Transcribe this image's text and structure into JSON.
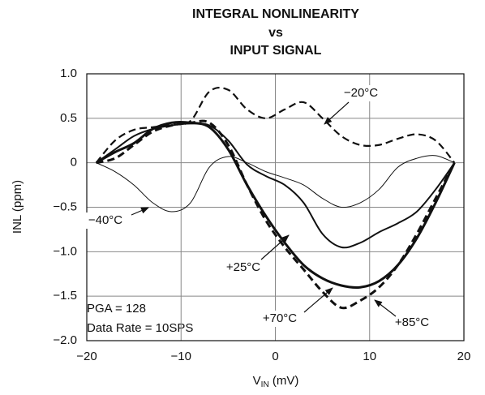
{
  "chart_data": {
    "type": "line",
    "title": [
      "INTEGRAL NONLINEARITY",
      "vs",
      "INPUT SIGNAL"
    ],
    "x_label": {
      "base": "V",
      "subscript": "IN",
      "unit": " (mV)"
    },
    "y_label": "INL (ppm)",
    "xlim": [
      -20,
      20
    ],
    "ylim": [
      -2.0,
      1.0
    ],
    "xticks": [
      {
        "value": -20,
        "label": "−20"
      },
      {
        "value": -10,
        "label": "−10"
      },
      0,
      10,
      20
    ],
    "yticks": [
      {
        "value": 1.0,
        "label": "1.0"
      },
      {
        "value": 0.5,
        "label": "0.5"
      },
      0,
      {
        "value": -0.5,
        "label": "−0.5"
      },
      {
        "value": -1.0,
        "label": "−1.0"
      },
      {
        "value": -1.5,
        "label": "−1.5"
      },
      {
        "value": -2.0,
        "label": "−2.0"
      }
    ],
    "grid": true,
    "x": [
      -19,
      -17,
      -15,
      -13,
      -11,
      -9,
      -7,
      -5,
      -3,
      -1,
      1,
      3,
      5,
      7,
      9,
      11,
      13,
      15,
      17,
      19
    ],
    "series": [
      {
        "name": "−20°C",
        "color": "#111111",
        "dash": true,
        "width": 2.2,
        "values": [
          0,
          0.25,
          0.37,
          0.4,
          0.43,
          0.47,
          0.8,
          0.82,
          0.6,
          0.5,
          0.6,
          0.68,
          0.5,
          0.3,
          0.2,
          0.2,
          0.27,
          0.32,
          0.25,
          0
        ]
      },
      {
        "name": "−40°C",
        "color": "#111111",
        "dash": false,
        "width": 1,
        "values": [
          0,
          -0.1,
          -0.25,
          -0.45,
          -0.55,
          -0.45,
          -0.05,
          0.07,
          0.0,
          -0.1,
          -0.17,
          -0.25,
          -0.4,
          -0.5,
          -0.45,
          -0.3,
          -0.05,
          0.05,
          0.08,
          0
        ]
      },
      {
        "name": "+25°C",
        "color": "#111111",
        "dash": false,
        "width": 2,
        "values": [
          0,
          0.15,
          0.3,
          0.38,
          0.42,
          0.44,
          0.42,
          0.25,
          -0.02,
          -0.15,
          -0.25,
          -0.45,
          -0.8,
          -0.95,
          -0.9,
          -0.78,
          -0.68,
          -0.55,
          -0.3,
          0
        ]
      },
      {
        "name": "+70°C",
        "color": "#111111",
        "dash": false,
        "width": 3,
        "values": [
          0,
          0.12,
          0.22,
          0.38,
          0.45,
          0.45,
          0.4,
          0.15,
          -0.25,
          -0.6,
          -0.9,
          -1.15,
          -1.3,
          -1.38,
          -1.4,
          -1.33,
          -1.15,
          -0.85,
          -0.45,
          0
        ]
      },
      {
        "name": "+85°C",
        "color": "#111111",
        "dash": true,
        "width": 3,
        "values": [
          0,
          0.05,
          0.2,
          0.35,
          0.42,
          0.45,
          0.45,
          0.2,
          -0.25,
          -0.65,
          -0.95,
          -1.2,
          -1.45,
          -1.63,
          -1.55,
          -1.4,
          -1.15,
          -0.8,
          -0.4,
          0
        ]
      }
    ],
    "notes": [
      "PGA = 128",
      "Data Rate = 10SPS"
    ]
  }
}
